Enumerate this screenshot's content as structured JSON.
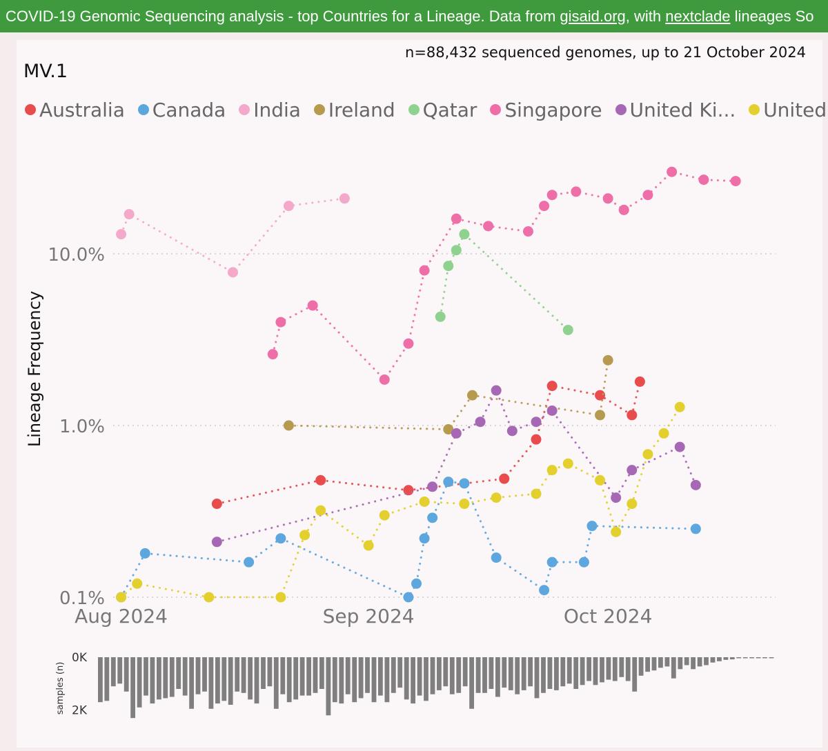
{
  "banner": {
    "text_a": "COVID-19 Genomic Sequencing analysis - top Countries for a Lineage. Data from ",
    "link_a": "gisaid.org",
    "text_b": ", with ",
    "link_b": "nextclade",
    "text_c": " lineages So"
  },
  "meta": "n=88,432 sequenced genomes, up to 21 October 2024",
  "lineage": "MV.1",
  "legend": [
    {
      "name": "Australia",
      "color": "#e84c4c"
    },
    {
      "name": "Canada",
      "color": "#5ea7de"
    },
    {
      "name": "India",
      "color": "#f4a9cb"
    },
    {
      "name": "Ireland",
      "color": "#b59a50"
    },
    {
      "name": "Qatar",
      "color": "#8fd18f"
    },
    {
      "name": "Singapore",
      "color": "#ee6ea8"
    },
    {
      "name": "United Ki...",
      "color": "#a668b5"
    },
    {
      "name": "United ...",
      "color": "#e3d02e"
    }
  ],
  "chart_data": [
    {
      "type": "line",
      "ylabel": "Lineage Frequency",
      "yscale": "log",
      "ylim": [
        0.1,
        25
      ],
      "yticks": [
        "10.0%",
        "1.0%",
        "0.1%"
      ],
      "xlim": [
        "2024-07-31",
        "2024-10-22"
      ],
      "xticks": [
        "Aug 2024",
        "Sep 2024",
        "Oct 2024"
      ],
      "grid": true,
      "legend_position": "top",
      "series": [
        {
          "name": "Australia",
          "color": "#e84c4c",
          "points": [
            [
              "2024-08-13",
              0.35
            ],
            [
              "2024-08-26",
              0.48
            ],
            [
              "2024-09-06",
              0.42
            ],
            [
              "2024-09-18",
              0.49
            ],
            [
              "2024-09-22",
              0.83
            ],
            [
              "2024-09-24",
              1.7
            ],
            [
              "2024-09-30",
              1.5
            ],
            [
              "2024-10-04",
              1.15
            ],
            [
              "2024-10-05",
              1.8
            ]
          ]
        },
        {
          "name": "Canada",
          "color": "#5ea7de",
          "points": [
            [
              "2024-08-01",
              0.1
            ],
            [
              "2024-08-04",
              0.18
            ],
            [
              "2024-08-17",
              0.16
            ],
            [
              "2024-08-21",
              0.22
            ],
            [
              "2024-09-06",
              0.1
            ],
            [
              "2024-09-07",
              0.12
            ],
            [
              "2024-09-08",
              0.22
            ],
            [
              "2024-09-09",
              0.29
            ],
            [
              "2024-09-11",
              0.47
            ],
            [
              "2024-09-13",
              0.46
            ],
            [
              "2024-09-17",
              0.17
            ],
            [
              "2024-09-23",
              0.11
            ],
            [
              "2024-09-24",
              0.16
            ],
            [
              "2024-09-28",
              0.16
            ],
            [
              "2024-09-29",
              0.26
            ],
            [
              "2024-10-12",
              0.25
            ]
          ]
        },
        {
          "name": "India",
          "color": "#f4a9cb",
          "points": [
            [
              "2024-08-01",
              13.0
            ],
            [
              "2024-08-02",
              17.0
            ],
            [
              "2024-08-15",
              7.8
            ],
            [
              "2024-08-22",
              19.0
            ],
            [
              "2024-08-29",
              21.0
            ]
          ]
        },
        {
          "name": "Ireland",
          "color": "#b59a50",
          "points": [
            [
              "2024-08-22",
              1.0
            ],
            [
              "2024-09-11",
              0.95
            ],
            [
              "2024-09-14",
              1.5
            ],
            [
              "2024-09-30",
              1.15
            ],
            [
              "2024-10-01",
              2.4
            ]
          ]
        },
        {
          "name": "Qatar",
          "color": "#8fd18f",
          "points": [
            [
              "2024-09-10",
              4.3
            ],
            [
              "2024-09-11",
              8.5
            ],
            [
              "2024-09-12",
              10.5
            ],
            [
              "2024-09-13",
              13.0
            ],
            [
              "2024-09-26",
              3.6
            ]
          ]
        },
        {
          "name": "Singapore",
          "color": "#ee6ea8",
          "points": [
            [
              "2024-08-20",
              2.6
            ],
            [
              "2024-08-21",
              4.0
            ],
            [
              "2024-08-25",
              5.0
            ],
            [
              "2024-09-03",
              1.85
            ],
            [
              "2024-09-06",
              3.0
            ],
            [
              "2024-09-08",
              8.0
            ],
            [
              "2024-09-12",
              16.0
            ],
            [
              "2024-09-16",
              14.5
            ],
            [
              "2024-09-21",
              13.5
            ],
            [
              "2024-09-23",
              19.0
            ],
            [
              "2024-09-24",
              22.0
            ],
            [
              "2024-09-27",
              23.0
            ],
            [
              "2024-10-01",
              21.0
            ],
            [
              "2024-10-03",
              18.0
            ],
            [
              "2024-10-06",
              22.0
            ],
            [
              "2024-10-09",
              30.0
            ],
            [
              "2024-10-13",
              27.0
            ],
            [
              "2024-10-17",
              26.5
            ]
          ]
        },
        {
          "name": "United Ki...",
          "color": "#a668b5",
          "points": [
            [
              "2024-08-13",
              0.21
            ],
            [
              "2024-09-09",
              0.44
            ],
            [
              "2024-09-12",
              0.9
            ],
            [
              "2024-09-15",
              1.05
            ],
            [
              "2024-09-17",
              1.6
            ],
            [
              "2024-09-19",
              0.93
            ],
            [
              "2024-09-22",
              1.05
            ],
            [
              "2024-09-24",
              1.22
            ],
            [
              "2024-10-02",
              0.38
            ],
            [
              "2024-10-04",
              0.55
            ],
            [
              "2024-10-10",
              0.75
            ],
            [
              "2024-10-12",
              0.45
            ]
          ]
        },
        {
          "name": "United ...",
          "color": "#e3d02e",
          "points": [
            [
              "2024-08-01",
              0.1
            ],
            [
              "2024-08-03",
              0.12
            ],
            [
              "2024-08-12",
              0.1
            ],
            [
              "2024-08-21",
              0.1
            ],
            [
              "2024-08-24",
              0.23
            ],
            [
              "2024-08-26",
              0.32
            ],
            [
              "2024-09-01",
              0.2
            ],
            [
              "2024-09-03",
              0.3
            ],
            [
              "2024-09-08",
              0.36
            ],
            [
              "2024-09-13",
              0.35
            ],
            [
              "2024-09-17",
              0.38
            ],
            [
              "2024-09-22",
              0.4
            ],
            [
              "2024-09-24",
              0.55
            ],
            [
              "2024-09-26",
              0.6
            ],
            [
              "2024-09-30",
              0.48
            ],
            [
              "2024-10-02",
              0.24
            ],
            [
              "2024-10-04",
              0.35
            ],
            [
              "2024-10-06",
              0.68
            ],
            [
              "2024-10-08",
              0.9
            ],
            [
              "2024-10-10",
              1.28
            ]
          ]
        }
      ]
    },
    {
      "type": "bar",
      "ylabel": "samples (n)",
      "yticks": [
        "0K",
        "2K"
      ],
      "ylim": [
        0,
        2400
      ],
      "xlim": [
        "2024-07-31",
        "2024-10-22"
      ],
      "values": [
        1700,
        1650,
        1100,
        1000,
        1300,
        2300,
        1900,
        1450,
        1750,
        1600,
        1550,
        1500,
        1200,
        1450,
        1950,
        1400,
        1300,
        1950,
        1750,
        1650,
        1800,
        1300,
        1350,
        1600,
        1750,
        1200,
        1100,
        1950,
        1400,
        1700,
        1600,
        1450,
        1450,
        1350,
        1200,
        2200,
        1700,
        1750,
        1400,
        1700,
        1550,
        1350,
        1700,
        1450,
        1700,
        1350,
        1150,
        1600,
        1750,
        1450,
        1650,
        1400,
        1250,
        1100,
        1400,
        1350,
        1100,
        1950,
        1350,
        1350,
        1200,
        1500,
        1150,
        1250,
        1400,
        1250,
        1100,
        1550,
        1350,
        1200,
        1250,
        1100,
        1000,
        1200,
        1050,
        900,
        1050,
        950,
        850,
        900,
        750,
        900,
        1300,
        700,
        550,
        500,
        400,
        350,
        800,
        450,
        300,
        450,
        350,
        300,
        200,
        150,
        100,
        80,
        40,
        40,
        40,
        40,
        40,
        40
      ]
    }
  ]
}
